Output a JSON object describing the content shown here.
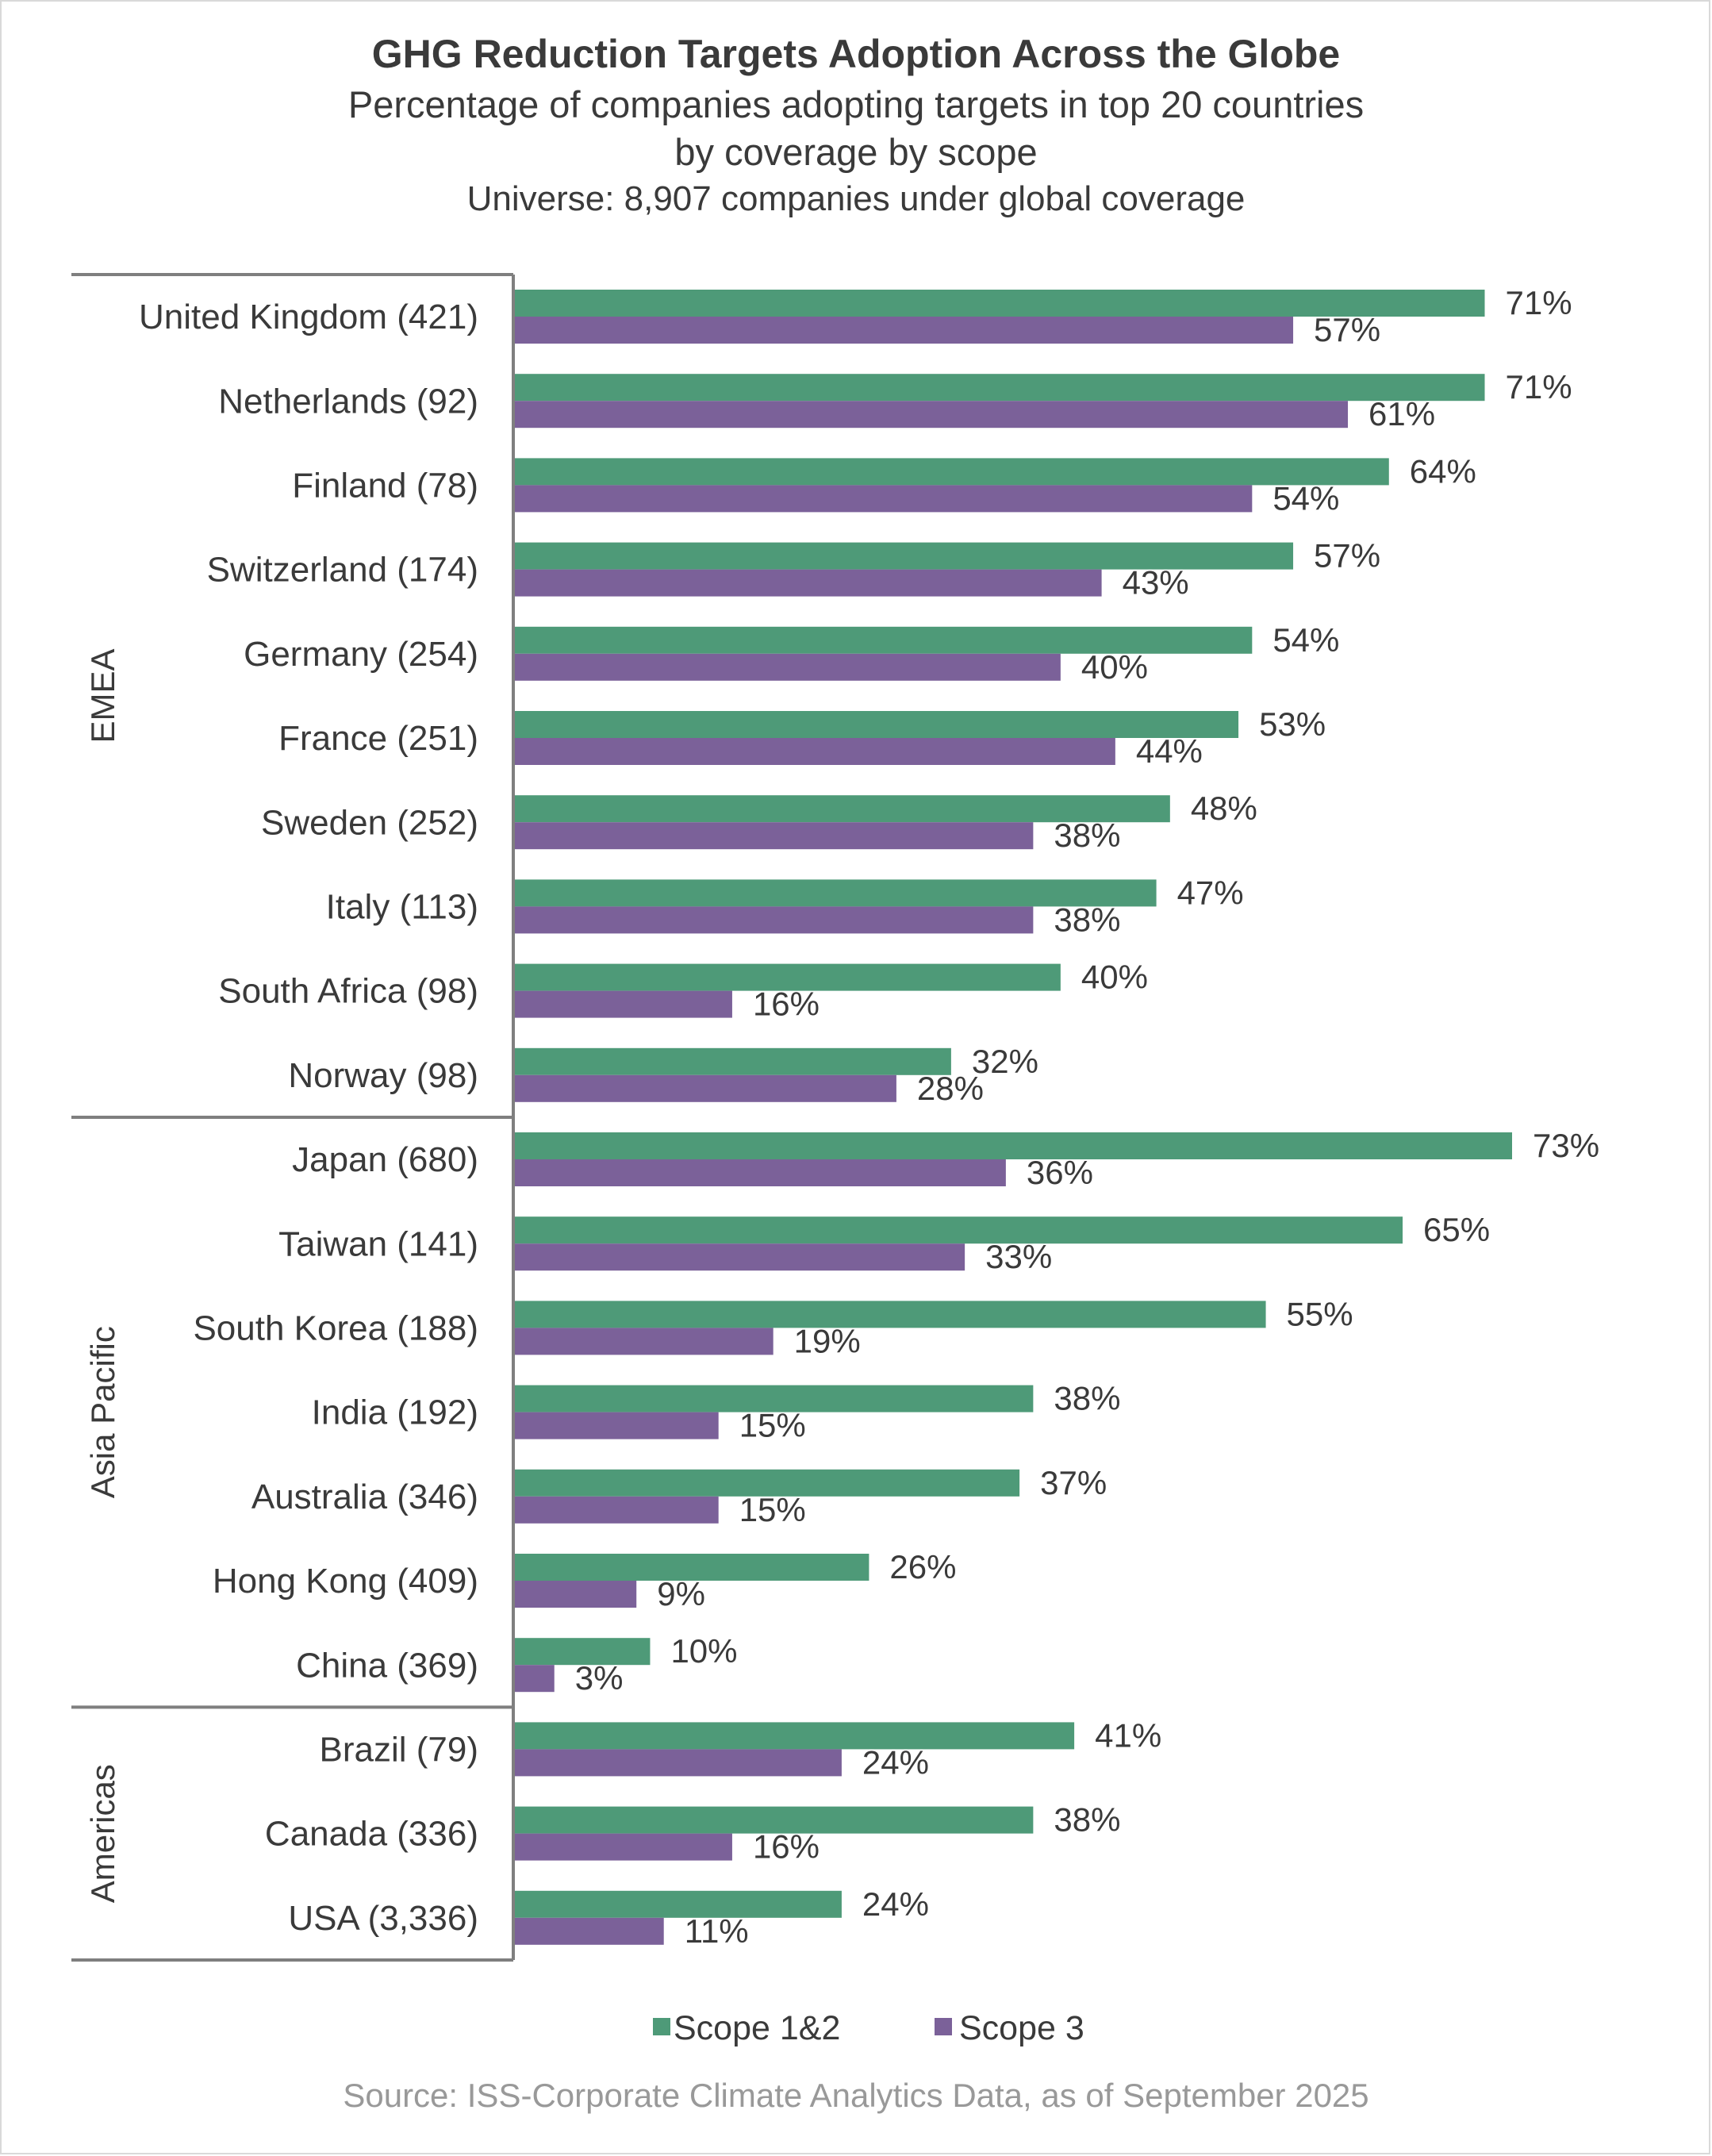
{
  "chart_data": {
    "type": "bar",
    "orientation": "horizontal",
    "title": "GHG Reduction Targets Adoption Across the Globe",
    "subtitle": [
      "Percentage of companies adopting targets in top 20 countries",
      "by coverage by scope"
    ],
    "universe": "Universe: 8,907 companies under global coverage",
    "source": "Source: ISS-Corporate Climate Analytics Data, as of September 2025",
    "xlim": [
      0,
      80
    ],
    "value_suffix": "%",
    "groups": [
      {
        "name": "EMEA",
        "count": 10
      },
      {
        "name": "Asia Pacific",
        "count": 7
      },
      {
        "name": "Americas",
        "count": 3
      }
    ],
    "categories": [
      "United Kingdom (421)",
      "Netherlands (92)",
      "Finland (78)",
      "Switzerland (174)",
      "Germany (254)",
      "France (251)",
      "Sweden (252)",
      "Italy (113)",
      "South Africa (98)",
      "Norway (98)",
      "Japan (680)",
      "Taiwan (141)",
      "South Korea (188)",
      "India (192)",
      "Australia (346)",
      "Hong Kong (409)",
      "China (369)",
      "Brazil (79)",
      "Canada (336)",
      "USA (3,336)"
    ],
    "series": [
      {
        "name": "Scope 1&2",
        "color": "#4e9a78",
        "values": [
          71,
          71,
          64,
          57,
          54,
          53,
          48,
          47,
          40,
          32,
          73,
          65,
          55,
          38,
          37,
          26,
          10,
          41,
          38,
          24
        ]
      },
      {
        "name": "Scope 3",
        "color": "#7b6199",
        "values": [
          57,
          61,
          54,
          43,
          40,
          44,
          38,
          38,
          16,
          28,
          36,
          33,
          19,
          15,
          15,
          9,
          3,
          24,
          16,
          11
        ]
      }
    ],
    "legend": "bottom-center"
  }
}
